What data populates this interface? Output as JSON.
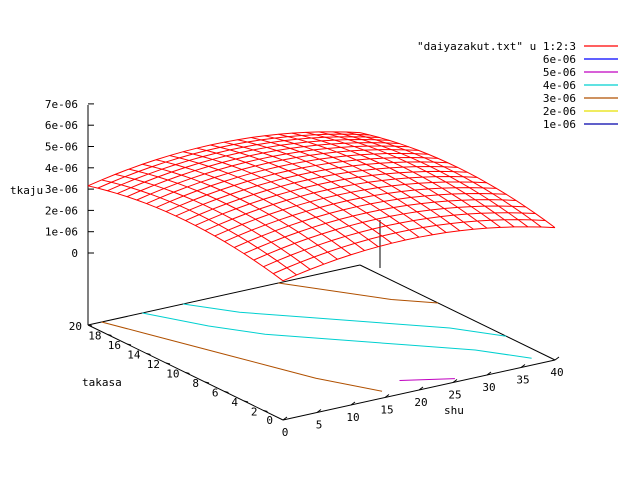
{
  "chart_data": {
    "type": "surface",
    "title": "",
    "xlabel": "shu",
    "ylabel": "takasa",
    "zlabel": "tkaju",
    "x_ticks": [
      "0",
      "5",
      "10",
      "15",
      "20",
      "25",
      "30",
      "35",
      "40"
    ],
    "y_ticks": [
      "2",
      "4",
      "6",
      "8",
      "10",
      "12",
      "14",
      "16",
      "18",
      "20"
    ],
    "z_ticks": [
      "0",
      "1e-06",
      "2e-06",
      "3e-06",
      "4e-06",
      "5e-06",
      "6e-06",
      "7e-06"
    ],
    "xlim": [
      0,
      40
    ],
    "ylim": [
      0,
      20
    ],
    "zlim": [
      0,
      7e-06
    ],
    "surface_series": {
      "name": "\"daiyazakut.txt\" u 1:2:3",
      "color": "#ff0000"
    },
    "contour_levels": [
      {
        "label": "6e-06",
        "value": 6e-06,
        "color": "#0000ff"
      },
      {
        "label": "5e-06",
        "value": 5e-06,
        "color": "#c000c0"
      },
      {
        "label": "4e-06",
        "value": 4e-06,
        "color": "#00d0d0"
      },
      {
        "label": "3e-06",
        "value": 3e-06,
        "color": "#b05000"
      },
      {
        "label": "2e-06",
        "value": 2e-06,
        "color": "#e8e000"
      },
      {
        "label": "1e-06",
        "value": 1e-06,
        "color": "#0000aa"
      }
    ],
    "grid": false,
    "legend_position": "top-right"
  }
}
